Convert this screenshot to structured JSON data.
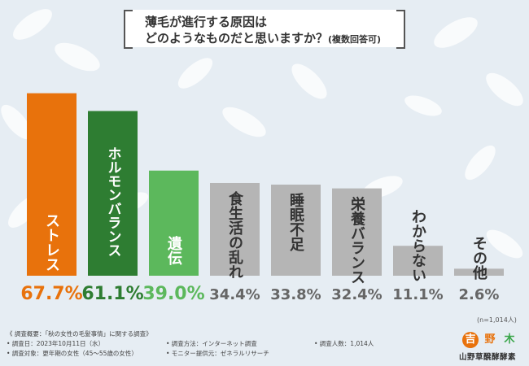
{
  "title": {
    "line1": "薄毛が進行する原因は",
    "line2": "どのようなものだと思いますか？",
    "line2_note": "(複数回答可)"
  },
  "chart_data": {
    "type": "bar",
    "categories": [
      "ストレス",
      "ホルモンバランス",
      "遺伝",
      "食生活の乱れ",
      "睡眠不足",
      "栄養バランス",
      "わからない",
      "その他"
    ],
    "values": [
      67.7,
      61.1,
      39.0,
      34.4,
      33.8,
      32.4,
      11.1,
      2.6
    ],
    "value_labels": [
      "67.7%",
      "61.1%",
      "39.0%",
      "34.4%",
      "33.8%",
      "32.4%",
      "11.1%",
      "2.6%"
    ],
    "ylim": [
      0,
      70
    ],
    "colors": [
      "#e8720c",
      "#2e7d32",
      "#5cb85c",
      "#b5b5b5",
      "#b5b5b5",
      "#b5b5b5",
      "#b5b5b5",
      "#b5b5b5"
    ],
    "label_colors": [
      "#e8720c",
      "#2e7d32",
      "#5cb85c",
      "#666666",
      "#666666",
      "#666666",
      "#666666",
      "#666666"
    ],
    "grid": false
  },
  "sample_note": "(n=1,014人)",
  "footer": {
    "overview": "《 調査概要：「秋の女性の毛髪事情」に関する調査》",
    "date": "• 調査日：2023年10月11日（水）",
    "method": "• 調査方法：インターネット調査",
    "count": "• 調査人数：1,014人",
    "target": "• 調査対象：更年期の女性（45〜55歳の女性）",
    "provider": "• モニター提供元：ゼネラルリサーチ"
  },
  "logo": {
    "mark1": "吉",
    "mark2": "野",
    "mark3": "木",
    "text": "山野草醗酵酵素"
  }
}
